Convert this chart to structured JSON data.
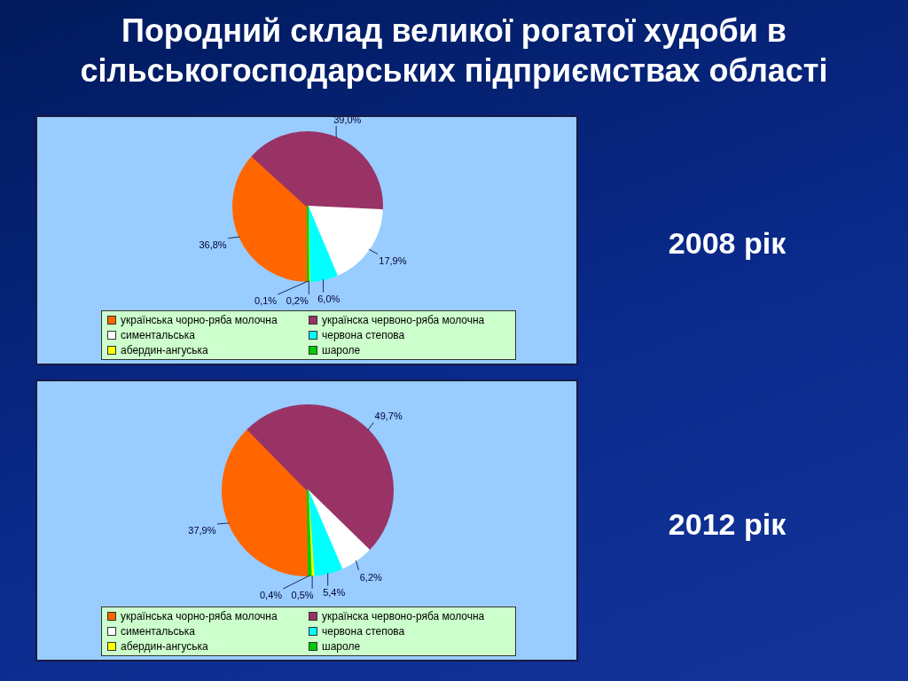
{
  "chart_data": [
    {
      "type": "pie",
      "title": "Породний склад великої рогатої худоби в сільськогосподарських підприємствах області",
      "subtitle": "2008 рік",
      "categories": [
        "українська чорно-ряба молочна",
        "українска червоно-ряба молочна",
        "симентальська",
        "червона степова",
        "абердин-ангуська",
        "шароле"
      ],
      "values": [
        36.8,
        39.0,
        17.9,
        6.0,
        0.2,
        0.1
      ],
      "colors": [
        "#ff6600",
        "#993366",
        "#ffffff",
        "#00ffff",
        "#ffff00",
        "#00cc00"
      ],
      "value_labels": [
        "36,8%",
        "39,0%",
        "17,9%",
        "6,0%",
        "0,2%",
        "0,1%"
      ],
      "legend": "bottom"
    },
    {
      "type": "pie",
      "subtitle": "2012 рік",
      "categories": [
        "українська чорно-ряба молочна",
        "українска червоно-ряба молочна",
        "симентальська",
        "червона степова",
        "абердин-ангуська",
        "шароле"
      ],
      "values": [
        37.9,
        49.7,
        6.2,
        5.4,
        0.5,
        0.4
      ],
      "colors": [
        "#ff6600",
        "#993366",
        "#ffffff",
        "#00ffff",
        "#ffff00",
        "#00cc00"
      ],
      "value_labels": [
        "37,9%",
        "49,7%",
        "6,2%",
        "5,4%",
        "0,5%",
        "0,4%"
      ],
      "legend": "bottom"
    }
  ]
}
